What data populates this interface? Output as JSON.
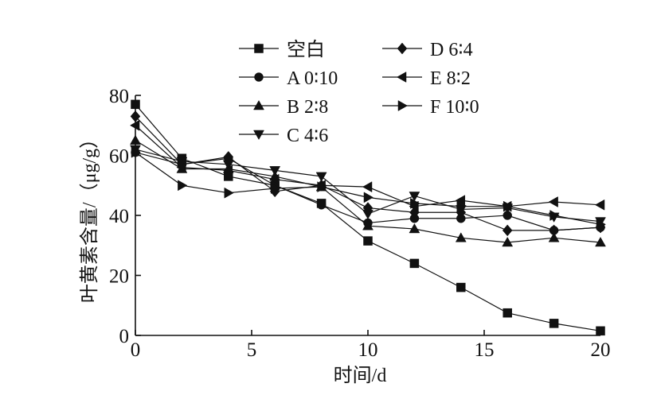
{
  "chart_data": {
    "type": "line",
    "xlabel": "时间/d",
    "ylabel": "叶黄素含量/（μg/g）",
    "xlim": [
      0,
      20
    ],
    "ylim": [
      0,
      80
    ],
    "xticks": [
      0,
      5,
      10,
      15,
      20
    ],
    "yticks": [
      0,
      20,
      40,
      60,
      80
    ],
    "x": [
      0,
      2,
      4,
      6,
      8,
      10,
      12,
      14,
      16,
      18,
      20
    ],
    "legend_position": "top",
    "series": [
      {
        "name": "空白",
        "marker": "square",
        "values": [
          77,
          59,
          53,
          50,
          44,
          31.5,
          24,
          16,
          7.5,
          4,
          1.5
        ]
      },
      {
        "name": "A 0∶10",
        "marker": "circle",
        "values": [
          61,
          57,
          59,
          50,
          43.5,
          37.5,
          39,
          39,
          40,
          35,
          36
        ]
      },
      {
        "name": "B 2∶8",
        "marker": "triangle-up",
        "values": [
          65,
          55.5,
          55.5,
          53,
          49.5,
          36.5,
          35.5,
          32.5,
          31,
          32.5,
          31
        ]
      },
      {
        "name": "C 4∶6",
        "marker": "triangle-down",
        "values": [
          62,
          58,
          57,
          55,
          53,
          40.5,
          46.5,
          42,
          42.5,
          39.5,
          38
        ]
      },
      {
        "name": "D 6∶4",
        "marker": "diamond",
        "values": [
          73,
          57,
          59.5,
          48,
          50,
          42.5,
          41,
          41,
          35,
          35,
          36
        ]
      },
      {
        "name": "E 8∶2",
        "marker": "triangle-left",
        "values": [
          70,
          56,
          55,
          52,
          50,
          49.5,
          43,
          45,
          43,
          44.5,
          43.5
        ]
      },
      {
        "name": "F 10∶0",
        "marker": "triangle-right",
        "values": [
          61,
          50,
          47.5,
          49,
          49.5,
          46,
          44,
          43,
          43,
          40,
          37
        ]
      }
    ]
  }
}
